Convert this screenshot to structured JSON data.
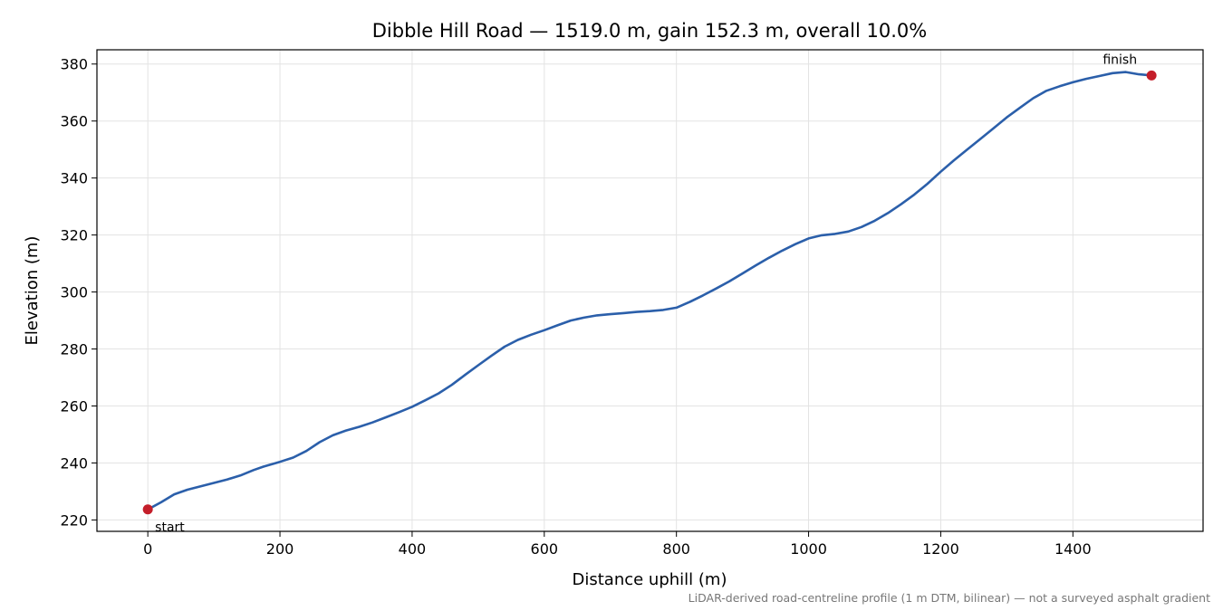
{
  "chart_data": {
    "type": "line",
    "title": "Dibble Hill Road — 1519.0 m, gain 152.3 m, overall 10.0%",
    "xlabel": "Distance uphill (m)",
    "ylabel": "Elevation (m)",
    "xlim": [
      -77,
      1597
    ],
    "ylim": [
      216,
      385
    ],
    "xticks": [
      0,
      200,
      400,
      600,
      800,
      1000,
      1200,
      1400
    ],
    "yticks": [
      220,
      240,
      260,
      280,
      300,
      320,
      340,
      360,
      380
    ],
    "xtick_labels": [
      "0",
      "200",
      "400",
      "600",
      "800",
      "1000",
      "1200",
      "1400"
    ],
    "ytick_labels": [
      "220",
      "240",
      "260",
      "280",
      "300",
      "320",
      "340",
      "360",
      "380"
    ],
    "grid": true,
    "line_color": "#2b5faa",
    "marker_color": "#c41e2a",
    "series": [
      {
        "x": [
          0,
          20,
          40,
          60,
          80,
          100,
          120,
          140,
          160,
          175,
          200,
          220,
          240,
          260,
          280,
          300,
          320,
          340,
          360,
          380,
          400,
          420,
          440,
          460,
          480,
          500,
          520,
          540,
          560,
          580,
          600,
          620,
          640,
          660,
          680,
          700,
          720,
          740,
          760,
          780,
          800,
          820,
          840,
          860,
          880,
          900,
          920,
          940,
          960,
          980,
          1000,
          1020,
          1040,
          1060,
          1080,
          1100,
          1120,
          1140,
          1160,
          1180,
          1200,
          1220,
          1240,
          1260,
          1280,
          1300,
          1320,
          1340,
          1360,
          1380,
          1400,
          1420,
          1440,
          1460,
          1480,
          1500,
          1519
        ],
        "y": [
          223.7,
          226.2,
          229.0,
          230.6,
          231.8,
          233.0,
          234.2,
          235.6,
          237.5,
          238.7,
          240.4,
          241.9,
          244.2,
          247.3,
          249.7,
          251.4,
          252.7,
          254.2,
          256.0,
          257.8,
          259.7,
          262.0,
          264.4,
          267.4,
          270.9,
          274.3,
          277.6,
          280.8,
          283.2,
          285.0,
          286.6,
          288.3,
          290.0,
          291.0,
          291.8,
          292.2,
          292.6,
          293.0,
          293.3,
          293.7,
          294.5,
          296.5,
          298.8,
          301.2,
          303.7,
          306.5,
          309.3,
          312.0,
          314.5,
          316.8,
          318.8,
          319.9,
          320.4,
          321.2,
          322.8,
          325.0,
          327.7,
          330.8,
          334.2,
          338.0,
          342.2,
          346.2,
          350.0,
          353.7,
          357.5,
          361.3,
          364.7,
          368.0,
          370.6,
          372.2,
          373.6,
          374.8,
          375.8,
          376.8,
          377.2,
          376.4,
          376.0
        ]
      }
    ],
    "annotations": [
      {
        "label": "start",
        "x": 0,
        "y": 223.7
      },
      {
        "label": "finish",
        "x": 1519,
        "y": 376.0
      }
    ],
    "footnote": "LiDAR-derived road-centreline profile (1 m DTM, bilinear) — not a surveyed asphalt gradient"
  }
}
